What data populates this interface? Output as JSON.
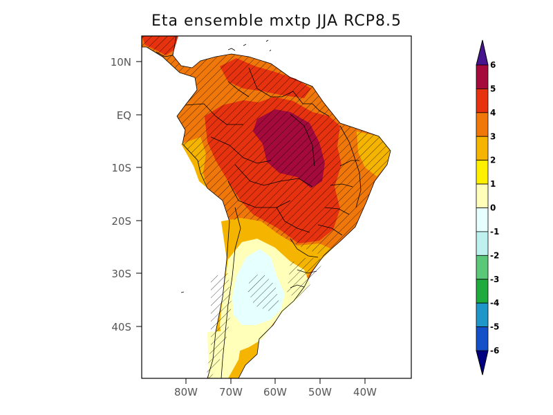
{
  "title": "Eta ensemble mxtp JJA RCP8.5",
  "colors": {
    "c5_6": "#a50a3c",
    "c4_5": "#e6320f",
    "c3_4": "#f0780a",
    "c2_3": "#f5b400",
    "c1_2": "#fff000",
    "c0_1": "#ffffb9",
    "cm1_0": "#e6ffff",
    "cm2_m1": "#bef0f0",
    "cm3_m2": "#5ac878",
    "cm4_m3": "#1eaa3c",
    "cm5_m4": "#1e96c8",
    "cm6_m5": "#1450c8",
    "over": "#46148c",
    "under": "#000080",
    "hatch": "#000000",
    "boundary": "#000000"
  },
  "lat_labels": [
    "10N",
    "EQ",
    "10S",
    "20S",
    "30S",
    "40S"
  ],
  "lon_labels": [
    "80W",
    "70W",
    "60W",
    "50W",
    "40W"
  ],
  "colorbar": {
    "labels": [
      "6",
      "5",
      "4",
      "3",
      "2",
      "1",
      "0",
      "-1",
      "-2",
      "-3",
      "-4",
      "-5",
      "-6"
    ],
    "bins": [
      "c5_6",
      "c4_5",
      "c3_4",
      "c2_3",
      "c1_2",
      "c0_1",
      "cm1_0",
      "cm2_m1",
      "cm3_m2",
      "cm4_m3",
      "cm5_m4",
      "cm6_m5"
    ]
  }
}
